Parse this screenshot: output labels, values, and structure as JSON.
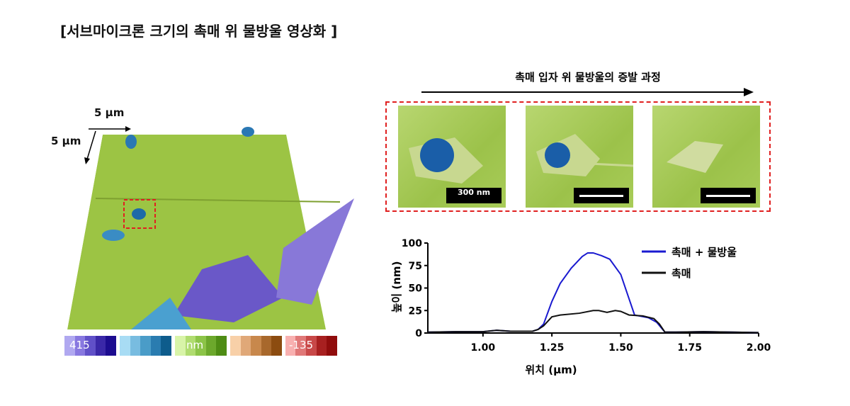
{
  "title": "[서브마이크론 크기의 촉매 위 물방울 영상화 ]",
  "afm3d": {
    "scale_x": "5 µm",
    "scale_y": "5 µm"
  },
  "colorbar": {
    "max_label": "415",
    "unit_label": "nm",
    "min_label": "-135",
    "colors": [
      "#b0a8f0",
      "#8878e0",
      "#6050c8",
      "#3a28a8",
      "#1c0c90",
      "#a8dcf4",
      "#78bce0",
      "#4a9cc8",
      "#2a7cb0",
      "#0e5c8c",
      "#d8f4a8",
      "#b0dc70",
      "#8cc448",
      "#6ca82c",
      "#4e8c14",
      "#f8d0a8",
      "#e0a878",
      "#c8884c",
      "#a8682c",
      "#8c4c10",
      "#f8b0b0",
      "#e07878",
      "#c84848",
      "#a82020",
      "#900c0c"
    ]
  },
  "process": {
    "label": "촉매 입자 위 물방울의 증발 과정",
    "scalebar_label": "300 nm"
  },
  "chart_data": {
    "type": "line",
    "xlabel": "위치 (µm)",
    "ylabel": "높이 (nm)",
    "xlim": [
      0.8,
      2.0
    ],
    "ylim": [
      0,
      100
    ],
    "xticks": [
      "1.00",
      "1.25",
      "1.50",
      "1.75",
      "2.00"
    ],
    "xtick_values": [
      1.0,
      1.25,
      1.5,
      1.75,
      2.0
    ],
    "yticks": [
      "0",
      "25",
      "50",
      "75",
      "100"
    ],
    "ytick_values": [
      0,
      25,
      50,
      75,
      100
    ],
    "legend_position": "top-right",
    "series": [
      {
        "name": "촉매 + 물방울",
        "color": "#1a1ad0",
        "x": [
          0.8,
          0.9,
          1.0,
          1.05,
          1.1,
          1.18,
          1.2,
          1.22,
          1.25,
          1.28,
          1.32,
          1.36,
          1.38,
          1.4,
          1.43,
          1.46,
          1.5,
          1.55,
          1.6,
          1.63,
          1.66,
          1.7,
          1.8,
          1.9,
          2.0
        ],
        "y": [
          1,
          1.5,
          1.5,
          3,
          2,
          2,
          4,
          10,
          35,
          55,
          72,
          85,
          89,
          89,
          86,
          82,
          65,
          20,
          17,
          12,
          1,
          1,
          1.5,
          1,
          0.5
        ]
      },
      {
        "name": "촉매",
        "color": "#111111",
        "x": [
          0.8,
          0.9,
          1.0,
          1.05,
          1.1,
          1.18,
          1.2,
          1.22,
          1.25,
          1.28,
          1.35,
          1.4,
          1.42,
          1.45,
          1.48,
          1.5,
          1.53,
          1.58,
          1.62,
          1.64,
          1.66,
          1.7,
          1.8,
          1.9,
          2.0
        ],
        "y": [
          1,
          1.5,
          1.5,
          3,
          2,
          2,
          4,
          8,
          18,
          20,
          22,
          25,
          25,
          23,
          25,
          24,
          20,
          19,
          16,
          10,
          1,
          1,
          1.5,
          1,
          0.5
        ]
      }
    ]
  }
}
